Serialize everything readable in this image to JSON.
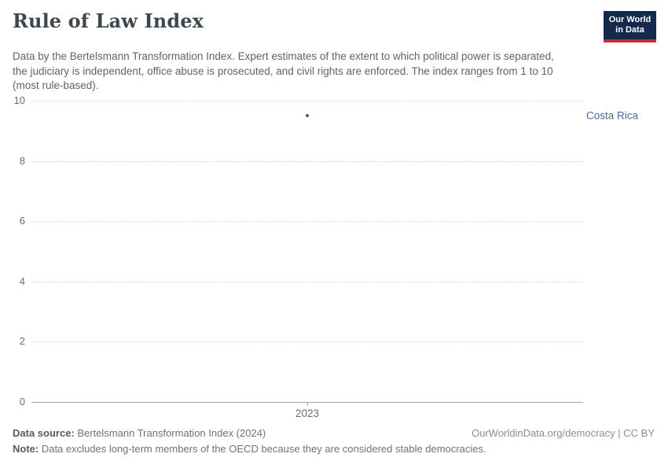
{
  "header": {
    "title": "Rule of Law Index",
    "subtitle": "Data by the Bertelsmann Transformation Index. Expert estimates of the extent to which political power is separated, the judiciary is independent, office abuse is prosecuted, and civil rights are enforced. The index ranges from 1 to 10 (most rule-based).",
    "logo": {
      "line1": "Our World",
      "line2": "in Data",
      "bg_color": "#14294e",
      "bar_color": "#c5302e"
    }
  },
  "chart_data": {
    "type": "scatter",
    "title": "Rule of Law Index",
    "xlabel": "",
    "ylabel": "",
    "ylim": [
      0,
      10
    ],
    "yticks": [
      0,
      2,
      4,
      6,
      8,
      10
    ],
    "xlim": [
      2022.5,
      2023.5
    ],
    "xticks": [
      2023
    ],
    "grid": "horizontal-dashed",
    "legend_position": "right-of-point",
    "series": [
      {
        "name": "Costa Rica",
        "x": [
          2023
        ],
        "values": [
          9.5
        ],
        "color": "#4c6a9c",
        "point_color": "#3d639d"
      }
    ]
  },
  "footer": {
    "source_label": "Data source:",
    "source_value": " Bertelsmann Transformation Index (2024)",
    "license": "OurWorldinData.org/democracy | CC BY",
    "note_label": "Note:",
    "note_value": " Data excludes long-term members of the OECD because they are considered stable democracies."
  }
}
